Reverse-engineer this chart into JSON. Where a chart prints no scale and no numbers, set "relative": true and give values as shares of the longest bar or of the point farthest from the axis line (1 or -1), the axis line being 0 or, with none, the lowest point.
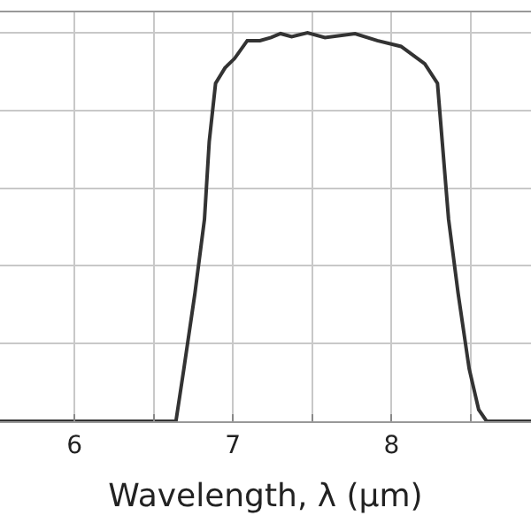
{
  "chart_data": {
    "type": "line",
    "xlabel": "Wavelength, λ (µm)",
    "relative": true,
    "xlim": [
      5.53,
      8.88
    ],
    "xticks": [
      6,
      {
        "value": 6.5,
        "label": null
      },
      7,
      {
        "value": 7.5,
        "label": null
      },
      8,
      {
        "value": 8.5,
        "label": null
      }
    ],
    "grid": true,
    "line_style": "solid",
    "marker": "none",
    "series": [
      {
        "color": "#333333",
        "x": [
          5.53,
          6.0,
          6.5,
          6.64,
          6.69,
          6.76,
          6.82,
          6.85,
          6.89,
          6.95,
          7.01,
          7.09,
          7.17,
          7.24,
          7.3,
          7.37,
          7.47,
          7.58,
          7.77,
          7.91,
          8.06,
          8.21,
          8.29,
          8.32,
          8.36,
          8.42,
          8.49,
          8.55,
          8.6,
          8.88
        ],
        "values": [
          0,
          0,
          0,
          0,
          0.135,
          0.33,
          0.52,
          0.72,
          0.87,
          0.91,
          0.934,
          0.98,
          0.98,
          0.988,
          0.998,
          0.99,
          1.0,
          0.988,
          0.998,
          0.98,
          0.965,
          0.92,
          0.87,
          0.72,
          0.52,
          0.33,
          0.135,
          0.03,
          0,
          0
        ]
      }
    ]
  }
}
